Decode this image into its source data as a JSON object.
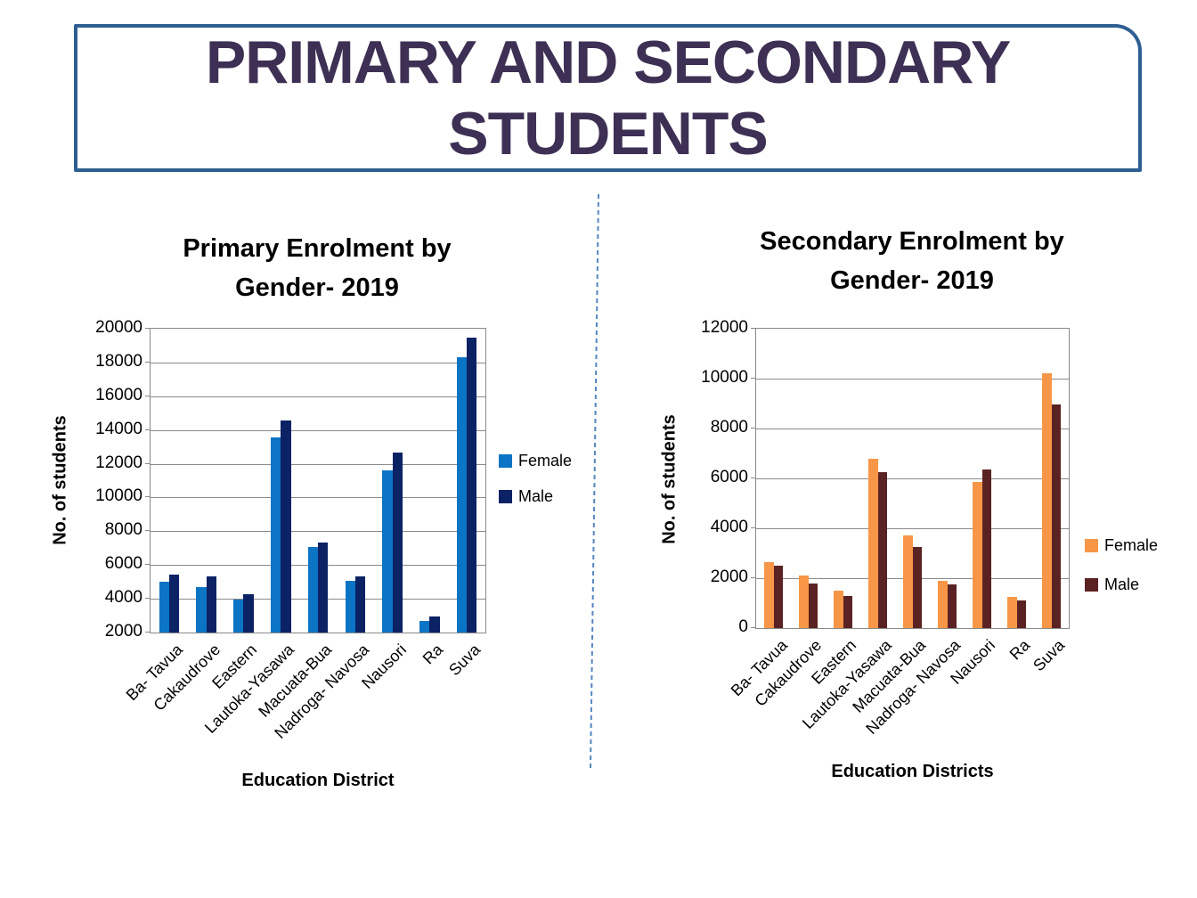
{
  "page_title": {
    "line1": "PRIMARY AND SECONDARY",
    "line2": "STUDENTS"
  },
  "theme": {
    "title_text_color": "#3E3054",
    "title_border_color": "#2E5E92",
    "divider_color": "#5585C0",
    "gridline_color": "#8a8a8a",
    "primary_female_color": "#0C74C4",
    "primary_male_color": "#0B2265",
    "secondary_female_color": "#F69646",
    "secondary_male_color": "#5B2223"
  },
  "chart_data": [
    {
      "type": "bar",
      "title": "Primary Enrolment by Gender- 2019",
      "title_lines": [
        "Primary Enrolment by",
        "Gender- 2019"
      ],
      "xlabel": "Education District",
      "ylabel": "No. of students",
      "ylim": [
        2000,
        20000
      ],
      "ytick_step": 2000,
      "grid": true,
      "legend_position": "right",
      "categories": [
        "Ba- Tavua",
        "Cakaudrove",
        "Eastern",
        "Lautoka-Yasawa",
        "Macuata-Bua",
        "Nadroga- Navosa",
        "Nausori",
        "Ra",
        "Suva"
      ],
      "series": [
        {
          "name": "Female",
          "color": "#0C74C4",
          "values": [
            5000,
            4700,
            3950,
            13550,
            7050,
            5050,
            11600,
            2700,
            18300
          ]
        },
        {
          "name": "Male",
          "color": "#0B2265",
          "values": [
            5450,
            5300,
            4250,
            14550,
            7350,
            5350,
            12650,
            2950,
            19450
          ]
        }
      ]
    },
    {
      "type": "bar",
      "title": "Secondary Enrolment by Gender- 2019",
      "title_lines": [
        "Secondary Enrolment by",
        "Gender- 2019"
      ],
      "xlabel": "Education Districts",
      "ylabel": "No. of students",
      "ylim": [
        0,
        12000
      ],
      "ytick_step": 2000,
      "grid": true,
      "legend_position": "right",
      "categories": [
        "Ba- Tavua",
        "Cakaudrove",
        "Eastern",
        "Lautoka-Yasawa",
        "Macuata-Bua",
        "Nadroga- Navosa",
        "Nausori",
        "Ra",
        "Suva"
      ],
      "series": [
        {
          "name": "Female",
          "color": "#F69646",
          "values": [
            2650,
            2100,
            1500,
            6800,
            3700,
            1900,
            5850,
            1250,
            10200
          ]
        },
        {
          "name": "Male",
          "color": "#5B2223",
          "values": [
            2500,
            1800,
            1300,
            6250,
            3250,
            1750,
            6350,
            1100,
            8950
          ]
        }
      ]
    }
  ]
}
